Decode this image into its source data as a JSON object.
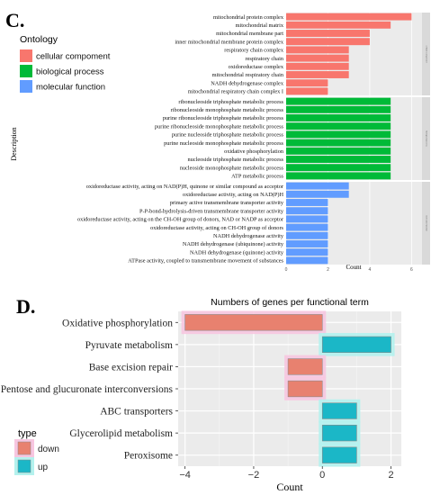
{
  "panel_c": {
    "label": "C.",
    "legend_title": "Ontology",
    "legend_items": [
      "cellular compoment",
      "biological process",
      "molecular function"
    ]
  },
  "panel_d": {
    "label": "D.",
    "legend_title": "type",
    "legend_items": [
      "down",
      "up"
    ]
  },
  "colors": {
    "cellular": "#f8766d",
    "biological": "#00ba38",
    "molecular": "#619cff",
    "down": "#e8816f",
    "up": "#1bb7c7",
    "down_glow": "#f7c6e0",
    "up_glow": "#b4f2ee",
    "panel_bg": "#ebebeb"
  },
  "chart_data": [
    {
      "type": "bar",
      "orientation": "horizontal",
      "ylabel": "Description",
      "xlabel": "Count",
      "xlim": [
        0,
        6.5
      ],
      "xticks": [
        "0",
        "2",
        "4",
        "6"
      ],
      "groups": [
        {
          "name": "cellular compoment",
          "facet_label": "cellular compoment",
          "color": "#f8766d",
          "categories": [
            "mitochondrial protein complex",
            "mitochondrial matrix",
            "mitochondrial membrane part",
            "inner mitochondrial membrane protein complex",
            "respiratory chain complex",
            "respiratory chain",
            "oxidoreductase complex",
            "mitochondrial respiratory chain",
            "NADH dehydrogenase complex",
            "mitochondrial respiratory chain complex I"
          ],
          "values": [
            6,
            5,
            4,
            4,
            3,
            3,
            3,
            3,
            2,
            2
          ]
        },
        {
          "name": "biological process",
          "facet_label": "biological process",
          "color": "#00ba38",
          "categories": [
            "ribonucleoside triphosphate metabolic process",
            "ribonucleoside monophosphate metabolic process",
            "purine ribonucleoside triphosphate metabolic process",
            "purine ribonucleoside monophosphate metabolic process",
            "purine nucleoside triphosphate metabolic process",
            "purine nucleoside monophosphate metabolic process",
            "oxidative phosphorylation",
            "nucleoside triphosphate metabolic process",
            "nucleoside monophosphate metabolic process",
            "ATP metabolic process"
          ],
          "values": [
            5,
            5,
            5,
            5,
            5,
            5,
            5,
            5,
            5,
            5
          ]
        },
        {
          "name": "molecular function",
          "facet_label": "molecular function",
          "color": "#619cff",
          "categories": [
            "oxidoreductase activity, acting on NAD(P)H, quinone or similar compound as acceptor",
            "oxidoreductase activity, acting on NAD(P)H",
            "primary active transmembrane transporter activity",
            "P-P-bond-hydrolysis-driven transmembrane transporter activity",
            "oxidoreductase activity, acting on the CH-OH group of donors, NAD or NADP as acceptor",
            "oxidoreductase activity, acting on CH-OH group of donors",
            "NADH dehydrogenase activity",
            "NADH dehydrogenase (ubiquinone) activity",
            "NADH dehydrogenase (quinone) activity",
            "ATPase activity, coupled to transmembrane movement of substances"
          ],
          "values": [
            3,
            3,
            2,
            2,
            2,
            2,
            2,
            2,
            2,
            2
          ]
        }
      ]
    },
    {
      "type": "bar",
      "orientation": "horizontal",
      "title": "Numbers of genes per functional term",
      "xlabel": "Count",
      "xlim": [
        -4.2,
        2.3
      ],
      "xticks": [
        "−4",
        "−2",
        "0",
        "2"
      ],
      "categories": [
        "Oxidative phosphorylation",
        "Pyruvate metabolism",
        "Base excision repair",
        "Pentose and glucuronate interconversions",
        "ABC transporters",
        "Glycerolipid metabolism",
        "Peroxisome"
      ],
      "values": [
        -4,
        2,
        -1,
        -1,
        1,
        1,
        1
      ],
      "type_of_bar": [
        "down",
        "up",
        "down",
        "down",
        "up",
        "up",
        "up"
      ],
      "grid": true
    }
  ]
}
